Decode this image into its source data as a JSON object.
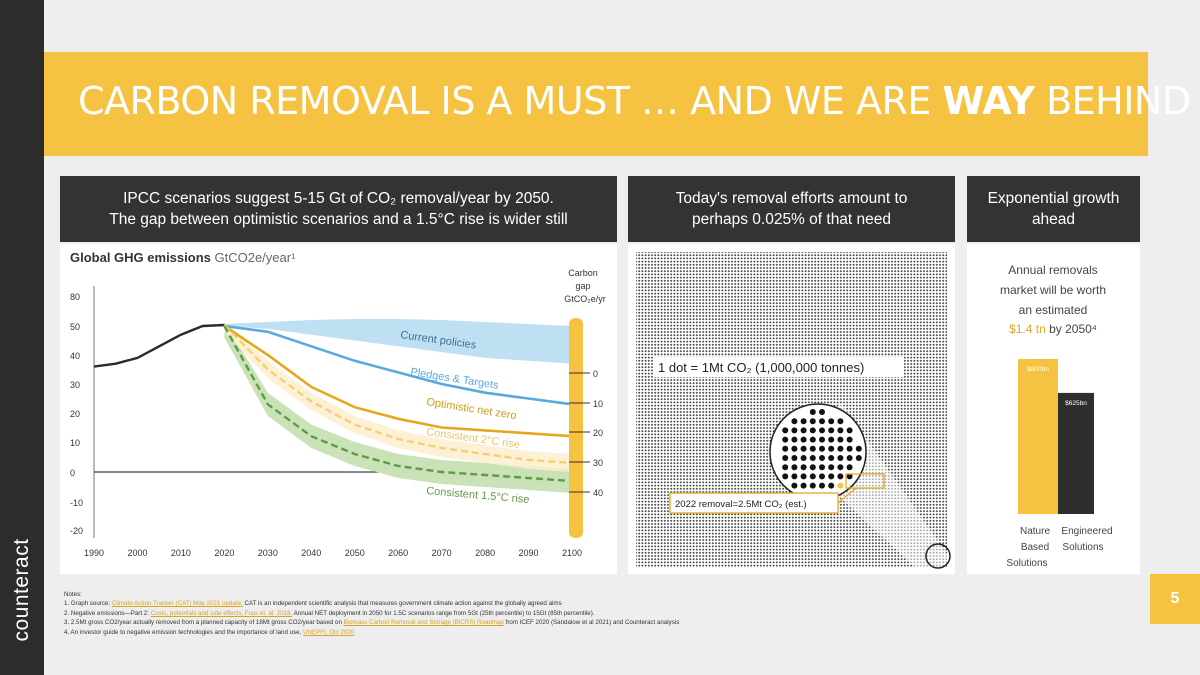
{
  "brand": "counteract",
  "title": {
    "main": "CARBON REMOVAL IS A MUST … AND WE ARE ",
    "strong": "WAY",
    "end": " BEHIND"
  },
  "panels": {
    "ipcc": {
      "line1": "IPCC scenarios suggest 5-15 Gt of CO₂ removal/year by 2050.",
      "line2": "The gap between optimistic scenarios and a 1.5°C rise is wider still"
    },
    "efforts": {
      "line1": "Today's removal efforts amount to",
      "line2": "perhaps 0.025% of that need"
    },
    "growth": {
      "line1": "Exponential growth",
      "line2": "ahead"
    }
  },
  "chart": {
    "title_bold": "Global GHG emissions",
    "title_unit": " GtCO2e/year¹",
    "gap_label": [
      "Carbon",
      "gap",
      "GtCO₂e/yr"
    ],
    "gap_ticks": [
      "0",
      "10",
      "20",
      "30",
      "40"
    ],
    "series_labels": {
      "current": "Current policies",
      "pledges": "Pledges & Targets",
      "optimistic": "Optimistic net zero",
      "two_c": "Consistent 2°C rise",
      "one_five": "Consistent 1.5°C rise"
    }
  },
  "chart_data": {
    "type": "line",
    "title": "Global GHG emissions",
    "ylabel": "GtCO2e/year",
    "ylim": [
      -20,
      80
    ],
    "xlim": [
      1990,
      2100
    ],
    "y_ticks": [
      80,
      50,
      40,
      30,
      20,
      10,
      0,
      -10,
      -20
    ],
    "x_ticks": [
      1990,
      2000,
      2010,
      2020,
      2030,
      2040,
      2050,
      2060,
      2070,
      2080,
      2090,
      2100
    ],
    "historical": {
      "x": [
        1990,
        1995,
        2000,
        2005,
        2010,
        2015,
        2020
      ],
      "y": [
        36,
        37,
        39,
        43,
        47,
        50,
        51
      ]
    },
    "series": [
      {
        "name": "Current policies",
        "x": [
          2020,
          2030,
          2040,
          2050,
          2060,
          2070,
          2080,
          2090,
          2100
        ],
        "lower": [
          50,
          49,
          47,
          45,
          43,
          41,
          39,
          38,
          37
        ],
        "upper": [
          52,
          54,
          56,
          57,
          57,
          56,
          54,
          52,
          50
        ]
      },
      {
        "name": "Pledges & Targets",
        "x": [
          2020,
          2030,
          2040,
          2050,
          2060,
          2070,
          2080,
          2090,
          2100
        ],
        "y": [
          50,
          48,
          43,
          38,
          34,
          30,
          27,
          25,
          23
        ]
      },
      {
        "name": "Optimistic net zero",
        "x": [
          2020,
          2030,
          2040,
          2050,
          2060,
          2070,
          2080,
          2090,
          2100
        ],
        "y": [
          50,
          40,
          29,
          22,
          18,
          15,
          14,
          13,
          12
        ]
      },
      {
        "name": "Consistent 2°C rise",
        "x": [
          2020,
          2030,
          2040,
          2050,
          2060,
          2070,
          2080,
          2090,
          2100
        ],
        "y": [
          51,
          35,
          24,
          16,
          11,
          8,
          6,
          4,
          3
        ]
      },
      {
        "name": "Consistent 1.5°C rise",
        "x": [
          2020,
          2030,
          2040,
          2050,
          2060,
          2070,
          2080,
          2090,
          2100
        ],
        "y": [
          50,
          23,
          12,
          6,
          2,
          0,
          -1,
          -2,
          -3
        ]
      }
    ],
    "gap_scale": {
      "ticks": [
        0,
        10,
        20,
        30,
        40
      ],
      "unit": "GtCO2e/yr"
    },
    "bars": {
      "type": "bar",
      "categories": [
        "Nature Based Solutions",
        "Engineered Solutions"
      ],
      "value_labels": [
        "$800bn",
        "$625bn"
      ],
      "values": [
        800,
        625
      ]
    }
  },
  "dots": {
    "legend": "1 dot = 1Mt CO₂ (1,000,000 tonnes)",
    "removal": "2022 removal=2.5Mt CO₂ (est.)"
  },
  "market": {
    "lines": [
      "Annual removals",
      "market will be worth",
      "an estimated"
    ],
    "highlight": "$1.4 tn",
    "tail": " by 2050⁴",
    "bar1_label": "$800bn",
    "bar2_label": "$625bn",
    "cat1": [
      "Nature",
      "Based",
      "Solutions"
    ],
    "cat2": [
      "Engineered",
      "Solutions"
    ]
  },
  "notes": {
    "head": "Notes:",
    "n1a": "1. Graph source: ",
    "n1link": "Climate Action Tracker (CAT) May 2021 update;",
    "n1b": " CAT is an independent scientific analysis that measures government climate action against the globally agreed aims",
    "n2a": "2. Negative emissions—Part 2: ",
    "n2link": "Costs, potentials and side effects, Fuss et. al. 2018.",
    "n2b": " Annual NET deployment in 2050 for 1.5C scenarios range from 5Gt (25th percentile) to 15Gt (85th percentile).",
    "n3a": "3. 2.5Mt gross CO2/year actually removed from a planned capacity of 18Mt gross CO2/year based on ",
    "n3link": "Biomass Carbon Removal and Storage (BiCRS) Roadmap",
    "n3b": " from ICEF 2020 (Sandalow et al 2021) and Counteract analysis",
    "n4a": "4. An investor guide to negative emission technologies and the importance of land use, ",
    "n4link": "UNEPFI, Oct 2020"
  },
  "page_number": "5",
  "colors": {
    "accent": "#f5c242",
    "dark": "#333333",
    "blue": "#5aa9dc",
    "blue_band": "#bfe0f3",
    "orange": "#e4a81f",
    "orange_light": "#f3d173",
    "green": "#5f9a46",
    "green_band": "#c9e2b8"
  }
}
